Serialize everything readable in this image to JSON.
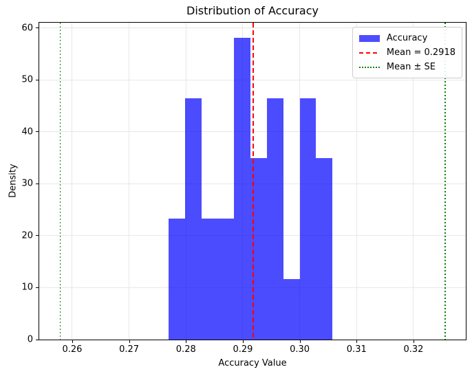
{
  "figure": {
    "background": "#ffffff"
  },
  "chart_data": {
    "type": "histogram",
    "title": "Distribution of Accuracy",
    "xlabel": "Accuracy Value",
    "ylabel": "Density",
    "xlim": [
      0.2542,
      0.3292
    ],
    "ylim": [
      0,
      61.0
    ],
    "grid": true,
    "xticks": {
      "values": [
        0.26,
        0.27,
        0.28,
        0.29,
        0.3,
        0.31,
        0.32
      ],
      "labels": [
        "0.26",
        "0.27",
        "0.28",
        "0.29",
        "0.30",
        "0.31",
        "0.32"
      ]
    },
    "yticks": {
      "values": [
        0,
        10,
        20,
        30,
        40,
        50,
        60
      ],
      "labels": [
        "0",
        "10",
        "20",
        "30",
        "40",
        "50",
        "60"
      ]
    },
    "bins": {
      "edges": [
        0.2769,
        0.2798,
        0.2827,
        0.2856,
        0.2884,
        0.2913,
        0.2942,
        0.2971,
        0.3,
        0.3028,
        0.3057
      ],
      "densities": [
        23.3,
        46.5,
        23.3,
        23.3,
        58.1,
        34.9,
        46.5,
        11.6,
        46.5,
        34.9
      ]
    },
    "bar_color": "#0000ff",
    "bar_alpha": 0.7,
    "bar_color_rendered": "#4d4dff",
    "mean_line": {
      "value": 0.2918,
      "color": "#ff0000",
      "style": "dashed"
    },
    "se_lines": {
      "values": [
        0.2579,
        0.3256
      ],
      "color": "#008000",
      "style": "dotted"
    },
    "grid_color": "#e7e7e7",
    "legend": {
      "position": "upper right",
      "entries": [
        {
          "label": "Accuracy",
          "swatch": "patch",
          "color": "#4d4dff"
        },
        {
          "label": "Mean = 0.2918",
          "swatch": "dashed-line",
          "color": "#ff0000"
        },
        {
          "label": "Mean ± SE",
          "swatch": "dotted-line",
          "color": "#008000"
        }
      ]
    }
  }
}
